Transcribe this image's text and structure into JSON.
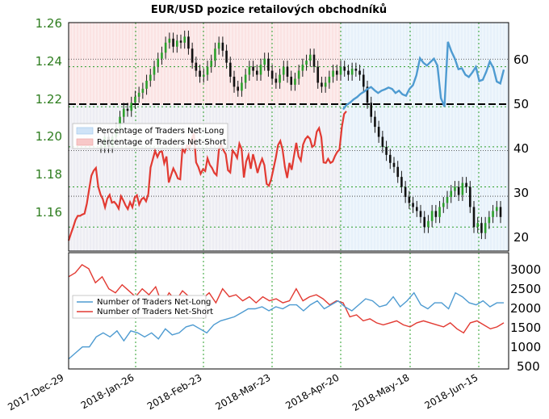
{
  "chart_data": [
    {
      "type": "line",
      "title": "EUR/USD pozice retailových obchodníků",
      "x_labels": [
        "2017-Dec-29",
        "2018-Jan-26",
        "2018-Feb-23",
        "2018-Mar-23",
        "2018-Apr-20",
        "2018-May-18",
        "2018-Jun-15"
      ],
      "y_left_ticks": [
        "1.26",
        "1.24",
        "1.22",
        "1.20",
        "1.18",
        "1.16"
      ],
      "y_right_ticks": [
        "60",
        "50",
        "40",
        "30",
        "20"
      ],
      "ylim_price": [
        1.148,
        1.262
      ],
      "ylim_percent": [
        18,
        68
      ],
      "reference_line_percent": 50,
      "legend": [
        "Percentage of Traders Net-Long",
        "Percentage of Traders Net-Short"
      ],
      "legend_colors": [
        "#cfe3f7",
        "#f8c8c8"
      ],
      "series": [
        {
          "name": "EUR/USD",
          "values": [
            1.2,
            1.205,
            1.2,
            1.205,
            1.209,
            1.215,
            1.219,
            1.218,
            1.222,
            1.225,
            1.227,
            1.229,
            1.233,
            1.236,
            1.24,
            1.244,
            1.247,
            1.252,
            1.254,
            1.25,
            1.253,
            1.252,
            1.255,
            1.249,
            1.242,
            1.238,
            1.235,
            1.236,
            1.24,
            1.243,
            1.249,
            1.252,
            1.248,
            1.242,
            1.235,
            1.23,
            1.228,
            1.232,
            1.236,
            1.24,
            1.238,
            1.236,
            1.241,
            1.244,
            1.238,
            1.234,
            1.232,
            1.236,
            1.24,
            1.235,
            1.231,
            1.234,
            1.238,
            1.241,
            1.243,
            1.246,
            1.24,
            1.232,
            1.23,
            1.232,
            1.235,
            1.238,
            1.236,
            1.24,
            1.238,
            1.236,
            1.239,
            1.238,
            1.236,
            1.23,
            1.222,
            1.215,
            1.21,
            1.205,
            1.2,
            1.196,
            1.192,
            1.19,
            1.185,
            1.18,
            1.175,
            1.172,
            1.17,
            1.168,
            1.165,
            1.16,
            1.163,
            1.168,
            1.165,
            1.17,
            1.172,
            1.175,
            1.178,
            1.18,
            1.176,
            1.182,
            1.18,
            1.17,
            1.16,
            1.162,
            1.157,
            1.162,
            1.165,
            1.168,
            1.17,
            1.165
          ]
        },
        {
          "name": "Percentage of Traders Net-Long",
          "color": "#4e9bd1",
          "values": [
            49,
            50,
            50.5,
            51.2,
            51.7,
            52.4,
            52.9,
            53.5,
            53.9,
            53.2,
            52.6,
            53.1,
            53.4,
            53.8,
            53.5,
            52.6,
            53.1,
            52.3,
            52.0,
            53.5,
            54.3,
            56.5,
            60.2,
            59.2,
            58.6,
            59.4,
            60.1,
            58.6,
            51.5,
            49.6,
            63.8,
            61.7,
            60.1,
            57.8,
            58.0,
            56.6,
            56.1,
            57.1,
            58.3,
            55.2,
            55.5,
            57.3,
            59.5,
            58.1,
            55.1,
            54.7,
            57.7
          ]
        },
        {
          "name": "Percentage of Traders Net-Short",
          "color": "#e23a32",
          "values": [
            20.3,
            21.8,
            23.2,
            24.8,
            25.7,
            25.7,
            26.0,
            26.2,
            28.4,
            31.5,
            34.5,
            35.6,
            36.2,
            32.1,
            30.4,
            29.4,
            27.6,
            29.5,
            30.3,
            28.6,
            28.8,
            28.2,
            27.3,
            30.0,
            29.1,
            28.0,
            27.2,
            28.7,
            27.6,
            29.7,
            30.2,
            28.2,
            29.3,
            29.7,
            28.9,
            30.5,
            36.3,
            38.1,
            39.9,
            38.6,
            39.7,
            39.8,
            37.2,
            38.7,
            33.0,
            34.6,
            36.1,
            35.1,
            33.9,
            33.7,
            40.4,
            39.6,
            41.1,
            40.5,
            42.3,
            43.8,
            37.4,
            36.4,
            34.9,
            35.9,
            35.5,
            38.3,
            36.9,
            36.2,
            35.1,
            34.6,
            40.1,
            41.3,
            40.1,
            39.2,
            35.7,
            35.2,
            40.0,
            39.4,
            38.4,
            41.5,
            40.3,
            34.1,
            37.6,
            39.0,
            36.0,
            39.2,
            37.3,
            35.1,
            36.9,
            38.2,
            36.8,
            32.7,
            32.3,
            33.8,
            36.1,
            38.4,
            41.2,
            42.1,
            40.2,
            36.4,
            34.0,
            37.3,
            35.8,
            38.8,
            41.7,
            38.7,
            37.8,
            41.3,
            42.5,
            43.1,
            42.6,
            40.8,
            41.2,
            44.1,
            44.9,
            42.9,
            37.4,
            37.3,
            38.2,
            37.3,
            37.6,
            38.8,
            39.7,
            40.2,
            45.1,
            48.0,
            48.6
          ]
        }
      ]
    },
    {
      "type": "line",
      "yticks": [
        "3000",
        "2500",
        "2000",
        "1500",
        "1000",
        "500"
      ],
      "ylim": [
        500,
        3400
      ],
      "legend": [
        "Number of Traders Net-Long",
        "Number of Traders Net-Short"
      ],
      "series": [
        {
          "name": "Number of Traders Net-Long",
          "color": "#4e9bd1",
          "values": [
            750,
            900,
            1050,
            1050,
            1300,
            1400,
            1300,
            1450,
            1200,
            1450,
            1400,
            1300,
            1400,
            1250,
            1500,
            1350,
            1400,
            1550,
            1600,
            1500,
            1400,
            1600,
            1700,
            1750,
            1800,
            1900,
            2000,
            2000,
            2050,
            1950,
            2050,
            2000,
            2100,
            2100,
            1950,
            2100,
            2200,
            2000,
            2100,
            2200,
            2050,
            1950,
            2100,
            2250,
            2200,
            2050,
            2100,
            2300,
            2050,
            2200,
            2400,
            2100,
            2000,
            2150,
            2150,
            2000,
            2400,
            2300,
            2150,
            2100,
            2200,
            2050,
            2150,
            2150
          ]
        },
        {
          "name": "Number of Traders Net-Short",
          "color": "#e23a32",
          "values": [
            2800,
            2900,
            3100,
            3000,
            2650,
            2800,
            2500,
            2400,
            2600,
            2450,
            2300,
            2500,
            2350,
            2550,
            2100,
            2400,
            2200,
            2450,
            2300,
            2200,
            2250,
            2400,
            2150,
            2500,
            2300,
            2350,
            2200,
            2300,
            2150,
            2300,
            2200,
            2250,
            2150,
            2200,
            2500,
            2200,
            2300,
            2350,
            2250,
            2100,
            2200,
            2150,
            1800,
            1850,
            1700,
            1750,
            1650,
            1600,
            1650,
            1700,
            1600,
            1550,
            1650,
            1700,
            1650,
            1600,
            1550,
            1650,
            1500,
            1400,
            1650,
            1700,
            1600,
            1500,
            1550,
            1650
          ]
        }
      ]
    }
  ]
}
